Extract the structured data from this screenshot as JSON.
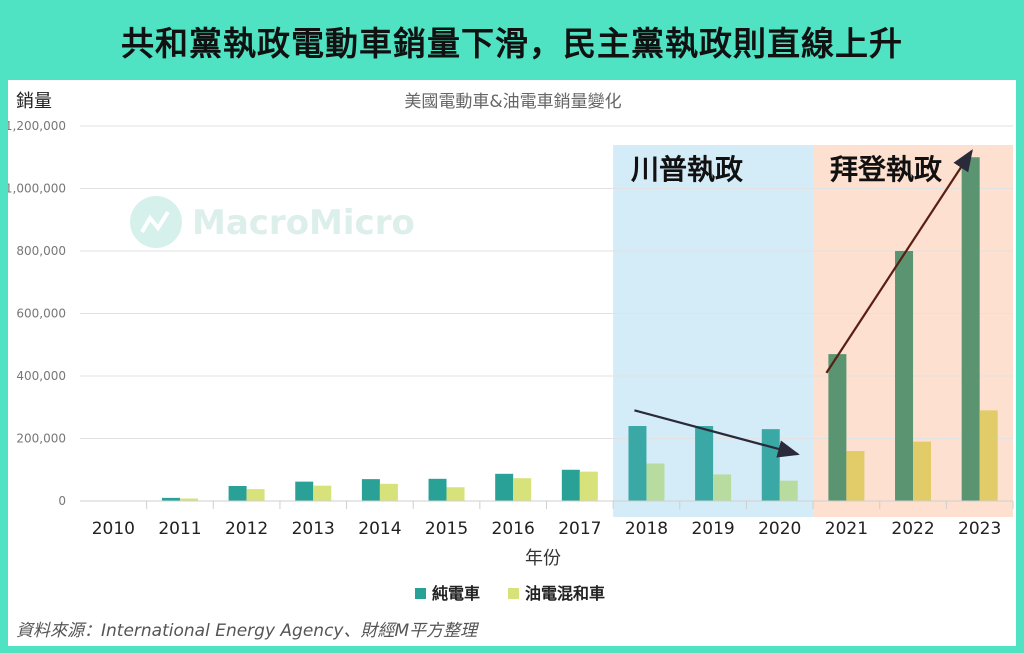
{
  "headline": "共和黨執政電動車銷量下滑，民主黨執政則直線上升",
  "source": "資料來源：International Energy Agency、財經M平方整理",
  "watermark": "MacroMicro",
  "colors": {
    "background": "#4fe3c4",
    "bev_base": "#2aa196",
    "phev_base": "#d8e27a",
    "bev_trump": "#3aa9a6",
    "phev_trump": "#b8dca0",
    "bev_biden": "#5a9470",
    "phev_biden": "#e2cc6a",
    "trump_band": "#d4ecf7",
    "biden_band": "#fde0cf",
    "arrow": "#2a2a3a"
  },
  "annotations": {
    "trump": "川普執政",
    "biden": "拜登執政"
  },
  "chart_data": {
    "type": "bar",
    "title": "美國電動車&油電車銷量變化",
    "xlabel": "年份",
    "ylabel": "銷量",
    "ylim": [
      0,
      1200000
    ],
    "yticks": [
      "0",
      "200,000",
      "400,000",
      "600,000",
      "800,000",
      "1,000,000",
      "1,200,000"
    ],
    "categories": [
      "2010",
      "2011",
      "2012",
      "2013",
      "2014",
      "2015",
      "2016",
      "2017",
      "2018",
      "2019",
      "2020",
      "2021",
      "2022",
      "2023"
    ],
    "series": [
      {
        "name": "純電車",
        "values": [
          1000,
          10000,
          48000,
          62000,
          70000,
          71000,
          87000,
          100000,
          240000,
          240000,
          230000,
          470000,
          800000,
          1100000
        ]
      },
      {
        "name": "油電混和車",
        "values": [
          0,
          8000,
          38000,
          49000,
          55000,
          44000,
          73000,
          94000,
          120000,
          85000,
          65000,
          160000,
          190000,
          290000
        ]
      }
    ],
    "grid": true,
    "legend": "bottom-center",
    "shaded_periods": [
      {
        "label": "川普執政",
        "from": "2018",
        "to": "2020"
      },
      {
        "label": "拜登執政",
        "from": "2021",
        "to": "2023"
      }
    ]
  }
}
